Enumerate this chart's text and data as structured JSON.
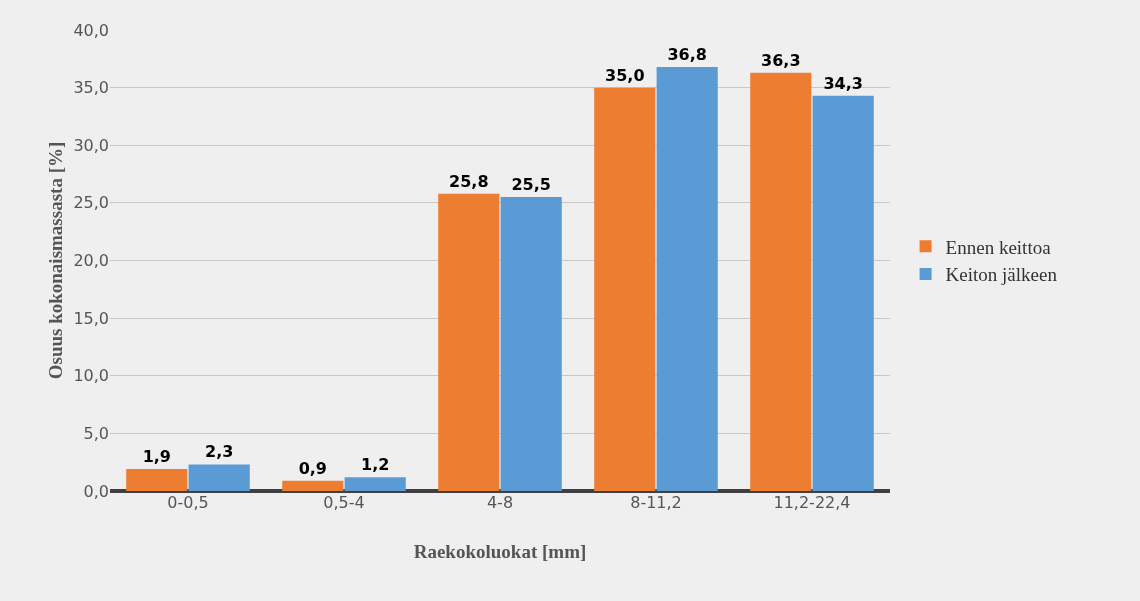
{
  "chart_data": {
    "type": "bar",
    "xlabel": "Raekokoluokat [mm]",
    "ylabel": "Osuus kokonaismassasta [%]",
    "categories": [
      "0-0,5",
      "0,5-4",
      "4-8",
      "8-11,2",
      "11,2-22,4"
    ],
    "series": [
      {
        "name": "Ennen keittoa",
        "color": "#ed7d31",
        "values": [
          1.9,
          0.9,
          25.8,
          35.0,
          36.3
        ],
        "value_labels": [
          "1,9",
          "0,9",
          "25,8",
          "35,0",
          "36,3"
        ]
      },
      {
        "name": "Keiton jälkeen",
        "color": "#5b9bd5",
        "values": [
          2.3,
          1.2,
          25.5,
          36.8,
          34.3
        ],
        "value_labels": [
          "2,3",
          "1,2",
          "25,5",
          "36,8",
          "34,3"
        ]
      }
    ],
    "ylim": [
      0,
      40
    ],
    "yticks": [
      {
        "value": 0,
        "label": "0,0"
      },
      {
        "value": 5,
        "label": "5,0"
      },
      {
        "value": 10,
        "label": "10,0"
      },
      {
        "value": 15,
        "label": "15,0"
      },
      {
        "value": 20,
        "label": "20,0"
      },
      {
        "value": 25,
        "label": "25,0"
      },
      {
        "value": 30,
        "label": "30,0"
      },
      {
        "value": 35,
        "label": "35,0"
      },
      {
        "value": 40,
        "label": "40,0"
      }
    ],
    "grid": "y",
    "legend": "right"
  }
}
